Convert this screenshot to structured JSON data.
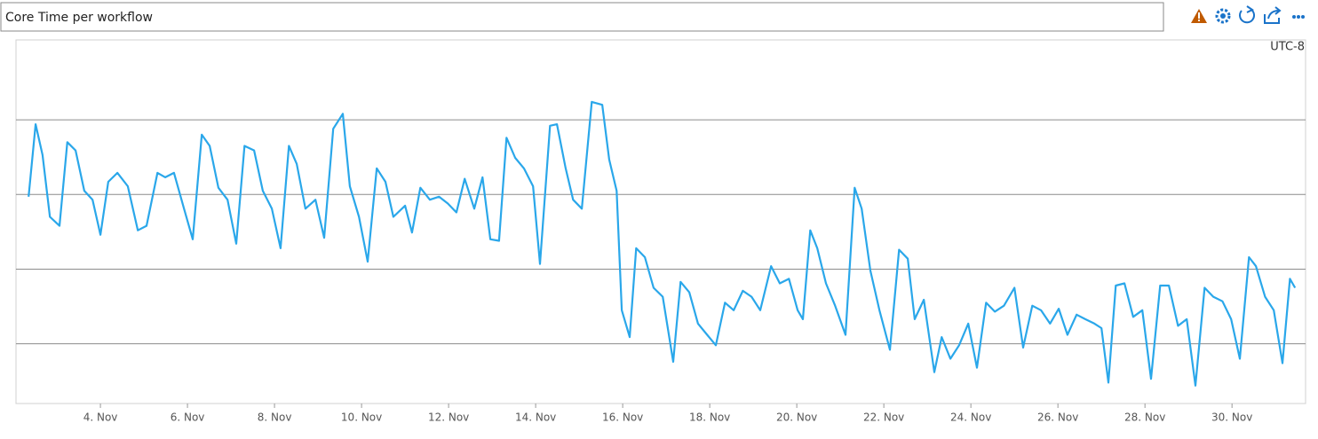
{
  "chart_data": {
    "type": "line",
    "title": "Core Time per workflow",
    "timezone": "UTC-8",
    "x": [
      2.35,
      2.51,
      2.67,
      2.84,
      3.06,
      3.24,
      3.43,
      3.63,
      3.82,
      4.0,
      4.18,
      4.39,
      4.63,
      4.86,
      5.06,
      5.31,
      5.49,
      5.69,
      5.92,
      6.12,
      6.33,
      6.51,
      6.71,
      6.92,
      7.12,
      7.31,
      7.53,
      7.73,
      7.94,
      8.14,
      8.33,
      8.51,
      8.71,
      8.94,
      9.14,
      9.35,
      9.57,
      9.73,
      9.94,
      10.14,
      10.35,
      10.55,
      10.73,
      11.0,
      11.16,
      11.35,
      11.57,
      11.78,
      11.98,
      12.18,
      12.37,
      12.59,
      12.78,
      12.96,
      13.16,
      13.33,
      13.53,
      13.73,
      13.94,
      14.1,
      14.33,
      14.49,
      14.69,
      14.86,
      15.06,
      15.29,
      15.53,
      15.69,
      15.86,
      15.98,
      16.16,
      16.31,
      16.51,
      16.71,
      16.92,
      17.16,
      17.33,
      17.53,
      17.73,
      17.94,
      18.14,
      18.35,
      18.55,
      18.76,
      18.96,
      19.16,
      19.41,
      19.61,
      19.82,
      20.02,
      20.14,
      20.31,
      20.47,
      20.67,
      20.88,
      21.12,
      21.33,
      21.49,
      21.69,
      21.9,
      22.14,
      22.35,
      22.55,
      22.71,
      22.92,
      23.16,
      23.33,
      23.53,
      23.73,
      23.94,
      24.14,
      24.35,
      24.55,
      24.76,
      25.0,
      25.2,
      25.41,
      25.61,
      25.82,
      26.02,
      26.22,
      26.43,
      26.63,
      26.84,
      27.0,
      27.16,
      27.33,
      27.53,
      27.73,
      27.94,
      28.14,
      28.35,
      28.55,
      28.76,
      28.96,
      29.16,
      29.37,
      29.57,
      29.78,
      29.98,
      30.18,
      30.39,
      30.55,
      30.76,
      30.96,
      31.16,
      31.33,
      31.45
    ],
    "series": [
      {
        "color": "#2aa7ea",
        "values": [
          2.97,
          3.94,
          3.53,
          2.7,
          2.58,
          3.7,
          3.59,
          3.05,
          2.93,
          2.46,
          3.17,
          3.29,
          3.11,
          2.52,
          2.58,
          3.29,
          3.23,
          3.29,
          2.81,
          2.4,
          3.8,
          3.65,
          3.09,
          2.93,
          2.34,
          3.65,
          3.59,
          3.05,
          2.81,
          2.28,
          3.65,
          3.41,
          2.81,
          2.93,
          2.42,
          3.88,
          4.08,
          3.11,
          2.7,
          2.1,
          3.35,
          3.17,
          2.7,
          2.85,
          2.49,
          3.09,
          2.93,
          2.97,
          2.88,
          2.76,
          3.21,
          2.81,
          3.23,
          2.4,
          2.38,
          3.76,
          3.49,
          3.35,
          3.11,
          2.07,
          3.92,
          3.94,
          3.35,
          2.93,
          2.81,
          4.24,
          4.2,
          3.47,
          3.05,
          1.45,
          1.09,
          2.28,
          2.16,
          1.75,
          1.63,
          0.76,
          1.83,
          1.69,
          1.27,
          1.12,
          0.98,
          1.55,
          1.45,
          1.71,
          1.63,
          1.45,
          2.04,
          1.81,
          1.87,
          1.45,
          1.33,
          2.52,
          2.28,
          1.81,
          1.51,
          1.12,
          3.09,
          2.81,
          1.98,
          1.45,
          0.92,
          2.26,
          2.14,
          1.33,
          1.59,
          0.62,
          1.09,
          0.8,
          0.98,
          1.27,
          0.68,
          1.55,
          1.43,
          1.51,
          1.75,
          0.95,
          1.51,
          1.45,
          1.27,
          1.47,
          1.12,
          1.39,
          1.33,
          1.27,
          1.21,
          0.48,
          1.78,
          1.81,
          1.36,
          1.45,
          0.53,
          1.78,
          1.78,
          1.24,
          1.33,
          0.44,
          1.75,
          1.63,
          1.57,
          1.33,
          0.8,
          2.16,
          2.04,
          1.63,
          1.45,
          0.74,
          1.87,
          1.75
        ]
      }
    ],
    "xlim": [
      2.06,
      31.69
    ],
    "xticks": [
      {
        "value": 4,
        "label": "4. Nov"
      },
      {
        "value": 6,
        "label": "6. Nov"
      },
      {
        "value": 8,
        "label": "8. Nov"
      },
      {
        "value": 10,
        "label": "10. Nov"
      },
      {
        "value": 12,
        "label": "12. Nov"
      },
      {
        "value": 14,
        "label": "14. Nov"
      },
      {
        "value": 16,
        "label": "16. Nov"
      },
      {
        "value": 18,
        "label": "18. Nov"
      },
      {
        "value": 20,
        "label": "20. Nov"
      },
      {
        "value": 22,
        "label": "22. Nov"
      },
      {
        "value": 24,
        "label": "24. Nov"
      },
      {
        "value": 26,
        "label": "26. Nov"
      },
      {
        "value": 28,
        "label": "28. Nov"
      },
      {
        "value": 30,
        "label": "30. Nov"
      }
    ],
    "ylim": [
      0.2,
      5.07
    ],
    "ygrid": [
      1,
      2,
      3,
      4
    ]
  }
}
